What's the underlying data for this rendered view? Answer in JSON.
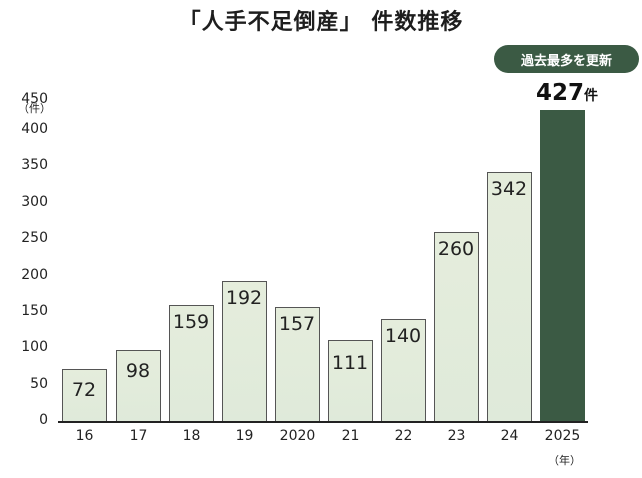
{
  "title": "「人手不足倒産」 件数推移",
  "badge": "過去最多を更新",
  "highlight": {
    "value": "427",
    "unit": "件"
  },
  "y_unit": "（件）",
  "x_unit": "（年）",
  "colors": {
    "bar_fill": "#e2ebd9",
    "bar_border": "#555555",
    "highlight": "#3b5a44"
  },
  "chart_data": {
    "type": "bar",
    "title": "「人手不足倒産」 件数推移",
    "xlabel": "（年）",
    "ylabel": "（件）",
    "ylim": [
      0,
      450
    ],
    "yticks": [
      0,
      50,
      100,
      150,
      200,
      250,
      300,
      350,
      400,
      450
    ],
    "grid": false,
    "categories": [
      "16",
      "17",
      "18",
      "19",
      "2020",
      "21",
      "22",
      "23",
      "24",
      "2025"
    ],
    "values": [
      72,
      98,
      159,
      192,
      157,
      111,
      140,
      260,
      342,
      427
    ],
    "annotations": [
      "過去最多を更新",
      "427件"
    ]
  }
}
